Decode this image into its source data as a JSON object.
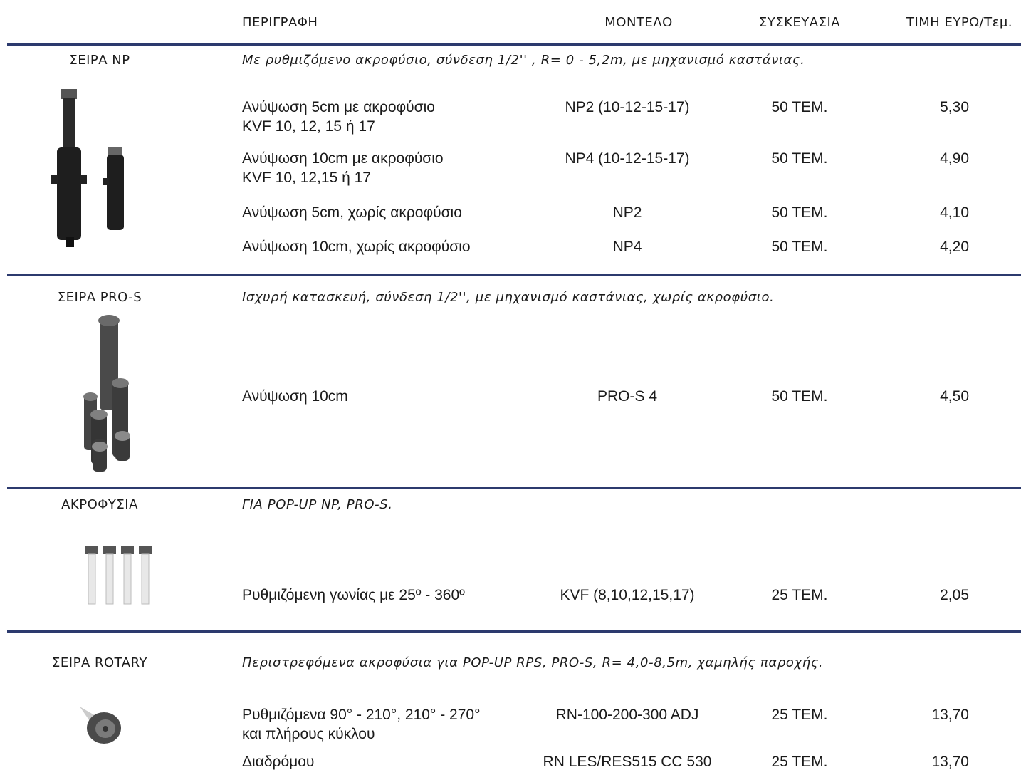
{
  "header": {
    "columns": [
      "ΠΕΡΙΓΡΑΦΗ",
      "ΜΟΝΤΕΛΟ",
      "ΣΥΣΚΕΥΑΣΙΑ",
      "ΤΙΜΗ ΕΥΡΩ/Τεμ."
    ]
  },
  "sections": [
    {
      "name": "ΣΕΙΡΑ NP",
      "note": "Με ρυθμιζόμενο ακροφύσιο, σύνδεση 1/2'' , R= 0 - 5,2m, με μηχανισμό καστάνιας.",
      "rows": [
        {
          "description": [
            "Ανύψωση 5cm με ακροφύσιο",
            "KVF 10, 12, 15 ή 17"
          ],
          "model": "NP2 (10-12-15-17)",
          "package": "50 TEM.",
          "price": "5,30"
        },
        {
          "description": [
            "Ανύψωση 10cm με ακροφύσιο",
            "KVF 10, 12,15 ή 17"
          ],
          "model": "NP4 (10-12-15-17)",
          "package": "50 TEM.",
          "price": "4,90"
        },
        {
          "description": [
            "Ανύψωση 5cm, χωρίς ακροφύσιο"
          ],
          "model": "NP2",
          "package": "50 TEM.",
          "price": "4,10"
        },
        {
          "description": [
            "Ανύψωση 10cm, χωρίς ακροφύσιο"
          ],
          "model": "NP4",
          "package": "50 TEM.",
          "price": "4,20"
        }
      ]
    },
    {
      "name": "ΣΕΙΡΑ PRO-S",
      "note": "Ισχυρή κατασκευή, σύνδεση 1/2'', με μηχανισμό καστάνιας, χωρίς ακροφύσιο.",
      "rows": [
        {
          "description": [
            "Ανύψωση 10cm"
          ],
          "model": "PRO-S 4",
          "package": "50 TEM.",
          "price": "4,50"
        }
      ]
    },
    {
      "name": "ΑΚΡΟΦΥΣΙΑ",
      "note": "ΓΙΑ POP-UP NP, PRO-S.",
      "rows": [
        {
          "description": [
            "Ρυθμιζόμενη γωνίας με 25º - 360º"
          ],
          "model": "KVF (8,10,12,15,17)",
          "package": "25 TEM.",
          "price": "2,05"
        }
      ]
    },
    {
      "name": "ΣΕΙΡΑ ROTARY",
      "note": "Περιστρεφόμενα ακροφύσια για POP-UP RPS, PRO-S, R= 4,0-8,5m, χαμηλής παροχής.",
      "rows": [
        {
          "description": [
            "Ρυθμιζόμενα 90° - 210°, 210° - 270°",
            "και πλήρους κύκλου"
          ],
          "model": "RN-100-200-300 ADJ",
          "package": "25 TEM.",
          "price": "13,70"
        },
        {
          "description": [
            "Διαδρόμου"
          ],
          "model": "RN LES/RES515 CC 530",
          "package": "25 TEM.",
          "price": "13,70"
        }
      ]
    }
  ]
}
